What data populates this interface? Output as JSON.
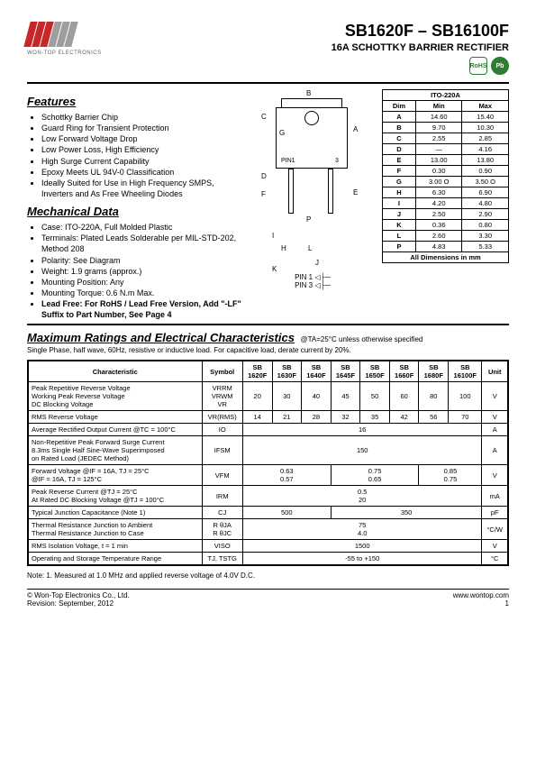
{
  "header": {
    "company": "WON-TOP ELECTRONICS",
    "title": "SB1620F – SB16100F",
    "subtitle": "16A SCHOTTKY BARRIER RECTIFIER",
    "rohs": "RoHS",
    "pb": "Pb"
  },
  "features": {
    "heading": "Features",
    "items": [
      "Schottky Barrier Chip",
      "Guard Ring for Transient Protection",
      "Low Forward Voltage Drop",
      "Low Power Loss, High Efficiency",
      "High Surge Current Capability",
      "Epoxy Meets UL 94V-0 Classification",
      "Ideally Suited for Use in High Frequency SMPS, Inverters and As Free Wheeling Diodes"
    ]
  },
  "mechanical": {
    "heading": "Mechanical Data",
    "items": [
      "Case: ITO-220A, Full Molded Plastic",
      "Terminals: Plated Leads Solderable per MIL-STD-202, Method 208",
      "Polarity: See Diagram",
      "Weight: 1.9 grams (approx.)",
      "Mounting Position: Any",
      "Mounting Torque: 0.6 N.m Max."
    ],
    "bold": "Lead Free: For RoHS / Lead Free Version, Add \"-LF\" Suffix to Part Number, See Page 4"
  },
  "diagram": {
    "pin1": "PIN1",
    "pin3": "3",
    "pin1b": "PIN 1",
    "pin3b": "PIN 3",
    "labels": {
      "A": "A",
      "B": "B",
      "C": "C",
      "D": "D",
      "E": "E",
      "F": "F",
      "G": "G",
      "H": "H",
      "I": "I",
      "J": "J",
      "K": "K",
      "L": "L",
      "P": "P"
    }
  },
  "dims": {
    "caption_top": "ITO-220A",
    "headers": [
      "Dim",
      "Min",
      "Max"
    ],
    "rows": [
      [
        "A",
        "14.60",
        "15.40"
      ],
      [
        "B",
        "9.70",
        "10.30"
      ],
      [
        "C",
        "2.55",
        "2.85"
      ],
      [
        "D",
        "—",
        "4.16"
      ],
      [
        "E",
        "13.00",
        "13.80"
      ],
      [
        "F",
        "0.30",
        "0.90"
      ],
      [
        "G",
        "3.00 O",
        "3.50 O"
      ],
      [
        "H",
        "6.30",
        "6.90"
      ],
      [
        "I",
        "4.20",
        "4.80"
      ],
      [
        "J",
        "2.50",
        "2.90"
      ],
      [
        "K",
        "0.36",
        "0.80"
      ],
      [
        "L",
        "2.60",
        "3.30"
      ],
      [
        "P",
        "4.83",
        "5.33"
      ]
    ],
    "caption": "All Dimensions in mm"
  },
  "maxratings": {
    "heading": "Maximum Ratings and Electrical Characteristics",
    "note_inline": "@TA=25°C unless otherwise specified",
    "note2": "Single Phase, half wave, 60Hz, resistive or inductive load. For capacitive load, derate current by 20%.",
    "headers": [
      "Characteristic",
      "Symbol",
      "SB 1620F",
      "SB 1630F",
      "SB 1640F",
      "SB 1645F",
      "SB 1650F",
      "SB 1660F",
      "SB 1680F",
      "SB 16100F",
      "Unit"
    ],
    "rows": [
      {
        "char": "Peak Repetitive Reverse Voltage\nWorking Peak Reverse Voltage\nDC Blocking Voltage",
        "sym": "VRRM\nVRWM\nVR",
        "vals": [
          "20",
          "30",
          "40",
          "45",
          "50",
          "60",
          "80",
          "100"
        ],
        "unit": "V"
      },
      {
        "char": "RMS Reverse Voltage",
        "sym": "VR(RMS)",
        "vals": [
          "14",
          "21",
          "28",
          "32",
          "35",
          "42",
          "56",
          "70"
        ],
        "unit": "V"
      },
      {
        "char": "Average Rectified Output Current   @TC = 100°C",
        "sym": "IO",
        "span": "16",
        "unit": "A"
      },
      {
        "char": "Non-Repetitive Peak Forward Surge Current\n8.3ms Single Half Sine-Wave Superimposed\non Rated Load (JEDEC Method)",
        "sym": "IFSM",
        "span": "150",
        "unit": "A"
      },
      {
        "char": "Forward Voltage          @IF = 16A, TJ = 25°C\n                                    @IF = 16A, TJ = 125°C",
        "sym": "VFM",
        "groups": [
          [
            "0.63",
            "0.57"
          ],
          [
            "0.75",
            "0.65"
          ],
          [
            "0.85",
            "0.75"
          ]
        ],
        "unit": "V"
      },
      {
        "char": "Peak Reverse Current           @TJ = 25°C\nAt Rated DC Blocking Voltage @TJ = 100°C",
        "sym": "IRM",
        "span2": [
          "0.5",
          "20"
        ],
        "unit": "mA"
      },
      {
        "char": "Typical Junction Capacitance (Note 1)",
        "sym": "CJ",
        "groups2": [
          "500",
          "350"
        ],
        "unit": "pF"
      },
      {
        "char": "Thermal Resistance Junction to Ambient\nThermal Resistance Junction to Case",
        "sym": "R θJA\nR θJC",
        "span2": [
          "75",
          "4.0"
        ],
        "unit": "°C/W"
      },
      {
        "char": "RMS Isolation Voltage, t = 1 min",
        "sym": "VISO",
        "span": "1500",
        "unit": "V"
      },
      {
        "char": "Operating and Storage Temperature Range",
        "sym": "TJ, TSTG",
        "span": "-55 to +150",
        "unit": "°C"
      }
    ]
  },
  "note1": "Note:  1. Measured at 1.0 MHz and applied reverse voltage of 4.0V D.C.",
  "footer": {
    "left1": "© Won-Top Electronics Co., Ltd.",
    "left2": "Revision: September, 2012",
    "right1": "www.wontop.com",
    "right2": "1"
  }
}
